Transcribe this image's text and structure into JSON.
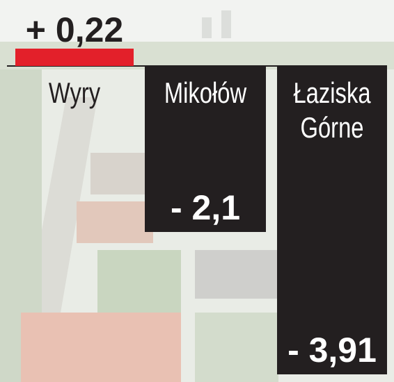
{
  "chart_data": {
    "type": "bar",
    "categories": [
      "Wyry",
      "Mikołów",
      "Łaziska Górne"
    ],
    "values": [
      0.22,
      -2.1,
      -3.91
    ],
    "value_labels": [
      "+ 0,22",
      "- 2,1",
      "- 3,91"
    ],
    "colors": [
      "#e3202a",
      "#231f20",
      "#231f20"
    ]
  }
}
